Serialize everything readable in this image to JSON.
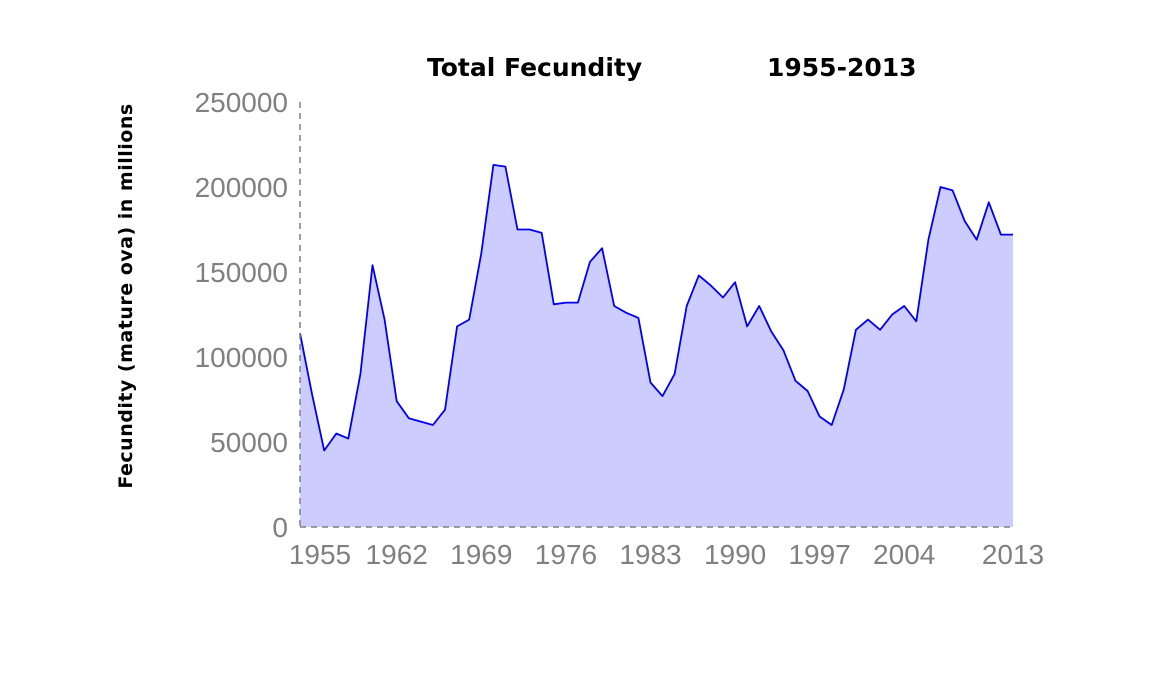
{
  "chart_data": {
    "type": "area",
    "title": "Total Fecundity",
    "subtitle": "1955-2013",
    "xlabel": "",
    "ylabel": "Fecundity (mature ova) in millions",
    "xlim": [
      1954,
      2013
    ],
    "ylim": [
      0,
      250000
    ],
    "grid": false,
    "legend": "none",
    "line_color": "#0000ee",
    "fill_color": "#ccccff",
    "x_ticks": [
      1955,
      1962,
      1969,
      1976,
      1983,
      1990,
      1997,
      2004,
      2013
    ],
    "y_ticks": [
      0,
      50000,
      100000,
      150000,
      200000,
      250000
    ],
    "x_tick_labels": [
      "1955",
      "1962",
      "1969",
      "1976",
      "1983",
      "1990",
      "1997",
      "2004",
      "2013"
    ],
    "y_tick_labels": [
      "0",
      "50000",
      "100000",
      "150000",
      "200000",
      "250000"
    ],
    "series": [
      {
        "x": [
          1954,
          1955,
          1956,
          1957,
          1958,
          1959,
          1960,
          1961,
          1962,
          1963,
          1964,
          1965,
          1966,
          1967,
          1968,
          1969,
          1970,
          1971,
          1972,
          1973,
          1974,
          1975,
          1976,
          1977,
          1978,
          1979,
          1980,
          1981,
          1982,
          1983,
          1984,
          1985,
          1986,
          1987,
          1988,
          1989,
          1990,
          1991,
          1992,
          1993,
          1994,
          1995,
          1996,
          1997,
          1998,
          1999,
          2000,
          2001,
          2002,
          2003,
          2004,
          2005,
          2006,
          2007,
          2008,
          2009,
          2010,
          2011,
          2012,
          2013
        ],
        "values": [
          114000,
          78000,
          45000,
          55000,
          52000,
          90000,
          154000,
          122000,
          74000,
          64000,
          62000,
          60000,
          69000,
          118000,
          122000,
          161000,
          213000,
          212000,
          175000,
          175000,
          173000,
          131000,
          132000,
          132000,
          156000,
          164000,
          130000,
          126000,
          123000,
          85000,
          77000,
          90000,
          130000,
          148000,
          142000,
          135000,
          144000,
          118000,
          130000,
          115000,
          104000,
          86000,
          80000,
          65000,
          60000,
          81000,
          116000,
          122000,
          116000,
          125000,
          130000,
          121000,
          169000,
          200000,
          198000,
          180000,
          169000,
          191000,
          172000,
          172000
        ]
      }
    ]
  }
}
